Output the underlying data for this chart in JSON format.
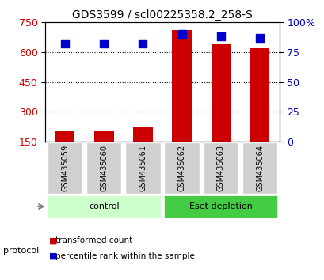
{
  "title": "GDS3599 / scl00225358.2_258-S",
  "samples": [
    "GSM435059",
    "GSM435060",
    "GSM435061",
    "GSM435062",
    "GSM435063",
    "GSM435064"
  ],
  "transformed_counts": [
    205,
    200,
    220,
    710,
    640,
    620
  ],
  "percentile_ranks": [
    82,
    82,
    82,
    90,
    88,
    87
  ],
  "bar_bottom": 150,
  "ylim_left": [
    150,
    750
  ],
  "ylim_right": [
    0,
    100
  ],
  "yticks_left": [
    150,
    300,
    450,
    600,
    750
  ],
  "yticks_right": [
    0,
    25,
    50,
    75,
    100
  ],
  "ytick_labels_left": [
    "150",
    "300",
    "450",
    "600",
    "750"
  ],
  "ytick_labels_right": [
    "0",
    "25",
    "50",
    "75",
    "100%"
  ],
  "bar_color": "#cc0000",
  "dot_color": "#0000cc",
  "grid_color": "#000000",
  "background_color": "#ffffff",
  "plot_bg_color": "#ffffff",
  "groups": [
    {
      "label": "control",
      "samples": [
        0,
        1,
        2
      ],
      "color": "#ccffcc"
    },
    {
      "label": "Eset depletion",
      "samples": [
        3,
        4,
        5
      ],
      "color": "#44cc44"
    }
  ],
  "protocol_label": "protocol",
  "legend_items": [
    {
      "color": "#cc0000",
      "label": "transformed count"
    },
    {
      "color": "#0000cc",
      "label": "percentile rank within the sample"
    }
  ],
  "tick_label_color_left": "#cc0000",
  "tick_label_color_right": "#0000bb",
  "bar_width": 0.5,
  "dot_size": 60,
  "dot_marker": "s"
}
